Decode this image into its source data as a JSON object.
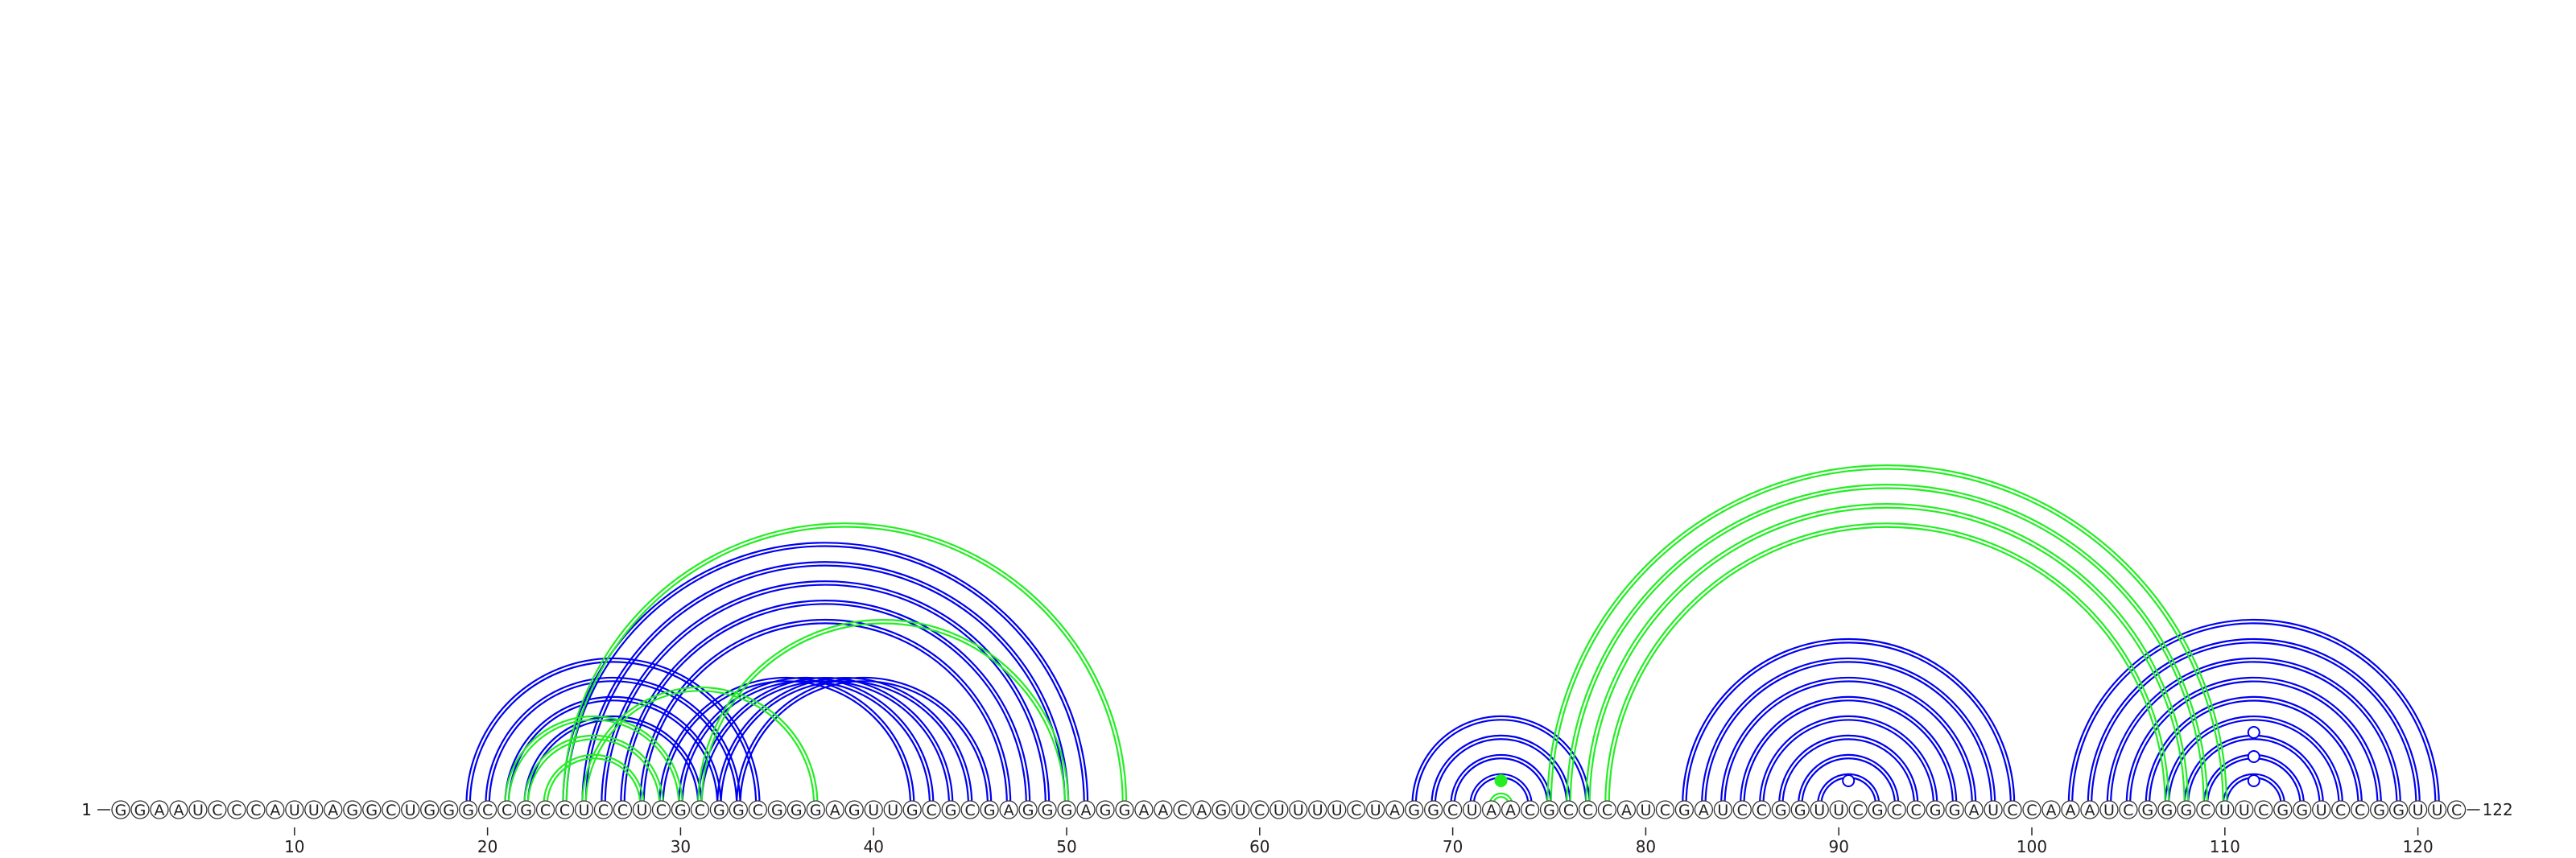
{
  "sequence": {
    "start_label": "1",
    "end_label": "122",
    "letters": "GGAAUCCCAUUAGGCUGGGCCGCCUCCUCGCGGCGGGAGUUGCGCGAGGGAGGAACAGUCUUUUCUAGGCUAACGCCCAUCGAUCCGGUUCGCCGGAUCCAAAUCGGGCUUCGGUCCGGUUC"
  },
  "axis": {
    "tick_labels": [
      "10",
      "20",
      "30",
      "40",
      "50",
      "60",
      "70",
      "80",
      "90",
      "100",
      "110",
      "120"
    ]
  },
  "colors": {
    "blue": "#0000ee",
    "green": "#22ee22",
    "node_stroke": "#333333"
  },
  "chart_data": {
    "type": "arc",
    "nucleotide_count": 122,
    "blue_arcs": [
      [
        19,
        34
      ],
      [
        20,
        33
      ],
      [
        21,
        32
      ],
      [
        22,
        31
      ],
      [
        29,
        42
      ],
      [
        30,
        43
      ],
      [
        31,
        44
      ],
      [
        32,
        45
      ],
      [
        33,
        46
      ],
      [
        28,
        47
      ],
      [
        27,
        48
      ],
      [
        26,
        49
      ],
      [
        25,
        50
      ],
      [
        24,
        51
      ],
      [
        68,
        77
      ],
      [
        69,
        76
      ],
      [
        70,
        75
      ],
      [
        71,
        74
      ],
      [
        82,
        99
      ],
      [
        83,
        98
      ],
      [
        84,
        97
      ],
      [
        85,
        96
      ],
      [
        86,
        95
      ],
      [
        87,
        94
      ],
      [
        88,
        93
      ],
      [
        89,
        92
      ],
      [
        102,
        121
      ],
      [
        103,
        120
      ],
      [
        104,
        119
      ],
      [
        105,
        118
      ],
      [
        106,
        117
      ],
      [
        107,
        116
      ],
      [
        108,
        115
      ],
      [
        109,
        114
      ],
      [
        110,
        113
      ]
    ],
    "green_arcs": [
      [
        24,
        53
      ],
      [
        31,
        50
      ],
      [
        25,
        37
      ],
      [
        21,
        30
      ],
      [
        22,
        29
      ],
      [
        23,
        28
      ],
      [
        75,
        110
      ],
      [
        76,
        109
      ],
      [
        77,
        108
      ],
      [
        78,
        107
      ],
      [
        72,
        73
      ]
    ],
    "markers": [
      {
        "pos": 72.5,
        "level": 1,
        "fill": "green"
      },
      {
        "pos": 90.5,
        "level": 1,
        "fill": "white"
      },
      {
        "pos": 111.5,
        "level": 1,
        "fill": "white"
      },
      {
        "pos": 111.5,
        "level": 2,
        "fill": "white"
      },
      {
        "pos": 111.5,
        "level": 3,
        "fill": "white"
      }
    ]
  }
}
